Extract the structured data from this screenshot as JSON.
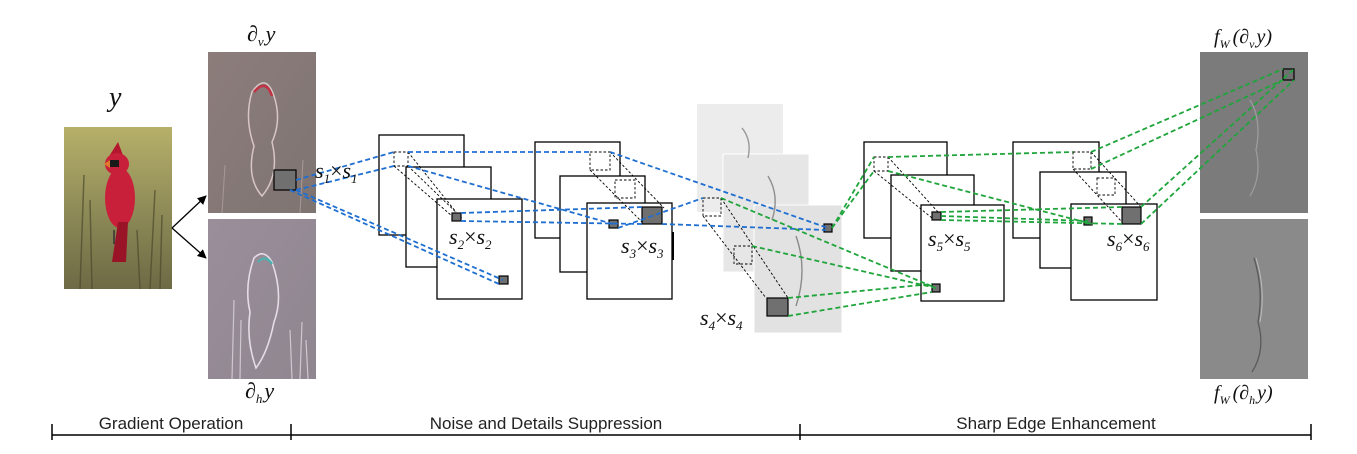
{
  "input": {
    "label": "y"
  },
  "gradients": {
    "vertical_label": "∂",
    "vertical_sub": "v",
    "vertical_var": "y",
    "horizontal_label": "∂",
    "horizontal_sub": "h",
    "horizontal_var": "y"
  },
  "kernels": [
    {
      "base": "s",
      "sub": "1"
    },
    {
      "base": "s",
      "sub": "2"
    },
    {
      "base": "s",
      "sub": "3"
    },
    {
      "base": "s",
      "sub": "4"
    },
    {
      "base": "s",
      "sub": "5"
    },
    {
      "base": "s",
      "sub": "6"
    }
  ],
  "times_symbol": "×",
  "outputs": {
    "top_func": "f",
    "top_func_sub": "W",
    "top_arg": "(∂",
    "top_arg_sub": "v",
    "top_arg_end": "y)",
    "bottom_func": "f",
    "bottom_func_sub": "W",
    "bottom_arg": "(∂",
    "bottom_arg_sub": "h",
    "bottom_arg_end": "y)"
  },
  "stages": [
    {
      "label": "Gradient Operation"
    },
    {
      "label": "Noise and Details Suppression"
    },
    {
      "label": "Sharp Edge Enhancement"
    }
  ],
  "colors": {
    "suppression_connections": "#1f6fd1",
    "enhancement_connections": "#1fa53b",
    "bird_red": "#c8203a",
    "gradient_tint": "#8a7a78"
  }
}
